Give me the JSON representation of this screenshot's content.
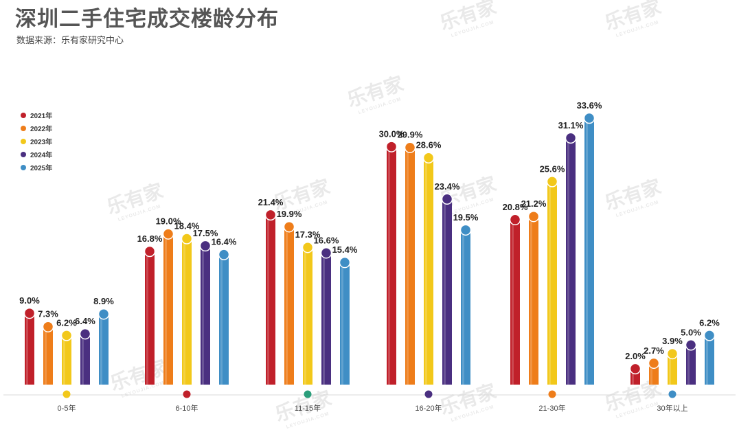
{
  "header": {
    "title": "深圳二手住宅成交楼龄分布",
    "subtitle": "数据来源：乐有家研究中心"
  },
  "watermark": {
    "text": "乐有家",
    "sub": "LEYOUJIA.COM"
  },
  "colors": {
    "2021年": "#c0202a",
    "2022年": "#ee7d1a",
    "2023年": "#f2c81a",
    "2024年": "#4a2f80",
    "2025年": "#3f8ec5",
    "axis_dot": "#2a9d7a"
  },
  "chart_data": {
    "type": "bar",
    "title": "深圳二手住宅成交楼龄分布",
    "xlabel": "",
    "ylabel": "",
    "ylim": [
      0,
      36
    ],
    "legend_position": "left",
    "grid": false,
    "categories": [
      "0-5年",
      "6-10年",
      "11-15年",
      "16-20年",
      "21-30年",
      "30年以上"
    ],
    "category_dot_colors": [
      "#f2c81a",
      "#c0202a",
      "#2a9d7a",
      "#4a2f80",
      "#ee7d1a",
      "#3f8ec5"
    ],
    "series": [
      {
        "name": "2021年",
        "color": "#c0202a",
        "values": [
          9.0,
          16.8,
          21.4,
          30.0,
          20.8,
          2.0
        ],
        "labels": [
          "9.0%",
          "16.8%",
          "21.4%",
          "30.0%",
          "20.8%",
          "2.0%"
        ]
      },
      {
        "name": "2022年",
        "color": "#ee7d1a",
        "values": [
          7.3,
          19.0,
          19.9,
          29.9,
          21.2,
          2.7
        ],
        "labels": [
          "7.3%",
          "19.0%",
          "19.9%",
          "29.9%",
          "21.2%",
          "2.7%"
        ]
      },
      {
        "name": "2023年",
        "color": "#f2c81a",
        "values": [
          6.2,
          18.4,
          17.3,
          28.6,
          25.6,
          3.9
        ],
        "labels": [
          "6.2%",
          "18.4%",
          "17.3%",
          "28.6%",
          "25.6%",
          "3.9%"
        ]
      },
      {
        "name": "2024年",
        "color": "#4a2f80",
        "values": [
          6.4,
          17.5,
          16.6,
          23.4,
          31.1,
          5.0
        ],
        "labels": [
          "6.4%",
          "17.5%",
          "16.6%",
          "23.4%",
          "31.1%",
          "5.0%"
        ]
      },
      {
        "name": "2025年",
        "color": "#3f8ec5",
        "values": [
          8.9,
          16.4,
          15.4,
          19.5,
          33.6,
          6.2
        ],
        "labels": [
          "8.9%",
          "16.4%",
          "15.4%",
          "19.5%",
          "33.6%",
          "6.2%"
        ]
      }
    ]
  }
}
